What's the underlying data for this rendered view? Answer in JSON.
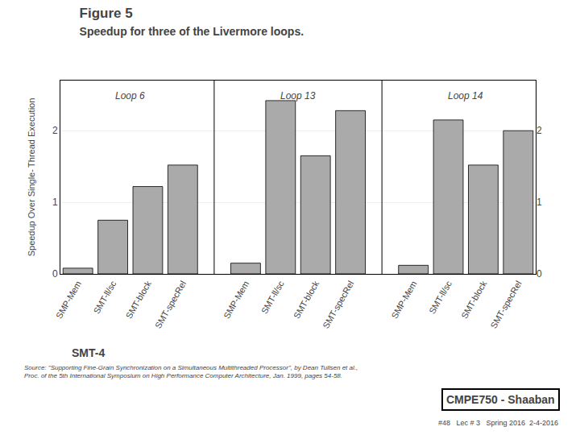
{
  "chart_data": {
    "type": "bar",
    "title": "Figure 5",
    "subtitle": "Speedup for three of the Livermore loops.",
    "ylabel": "Speedup Over Single- Thread Execution",
    "color": "#aaaaaa",
    "groups": [
      {
        "label": "Loop 6",
        "categories": [
          "SMP-Mem",
          "SMT-ll/sc",
          "SMT-block",
          "SMT-specRel"
        ],
        "values": [
          0.08,
          0.75,
          1.22,
          1.52
        ]
      },
      {
        "label": "Loop 13",
        "categories": [
          "SMP-Mem",
          "SMT-ll/sc",
          "SMT-block",
          "SMT-specRel"
        ],
        "values": [
          0.15,
          2.42,
          1.65,
          2.28
        ]
      },
      {
        "label": "Loop 14",
        "categories": [
          "SMP-Mem",
          "SMT-ll/sc",
          "SMT-block",
          "SMT-specRel"
        ],
        "values": [
          0.12,
          2.15,
          1.52,
          2.0
        ]
      }
    ],
    "ylim": [
      0,
      2.7
    ],
    "yticks": [
      0,
      1,
      2
    ],
    "y2lim": [
      0,
      2.7
    ],
    "y2ticks": [
      0,
      1,
      2
    ],
    "grid": true,
    "annotations": [
      "SMT-4",
      "Source: \"Supporting Fine-Grain Synchronization on a Simultaneous Multithreaded Processor\", by Dean Tullsen et al.,\nProc. of the 5th International Symposium on High Performance Computer Architecture, Jan. 1999, pages 54-58.",
      "CMPE750 - Shaaban",
      "#48   Lec # 3   Spring 2016  2-4-2016"
    ]
  }
}
